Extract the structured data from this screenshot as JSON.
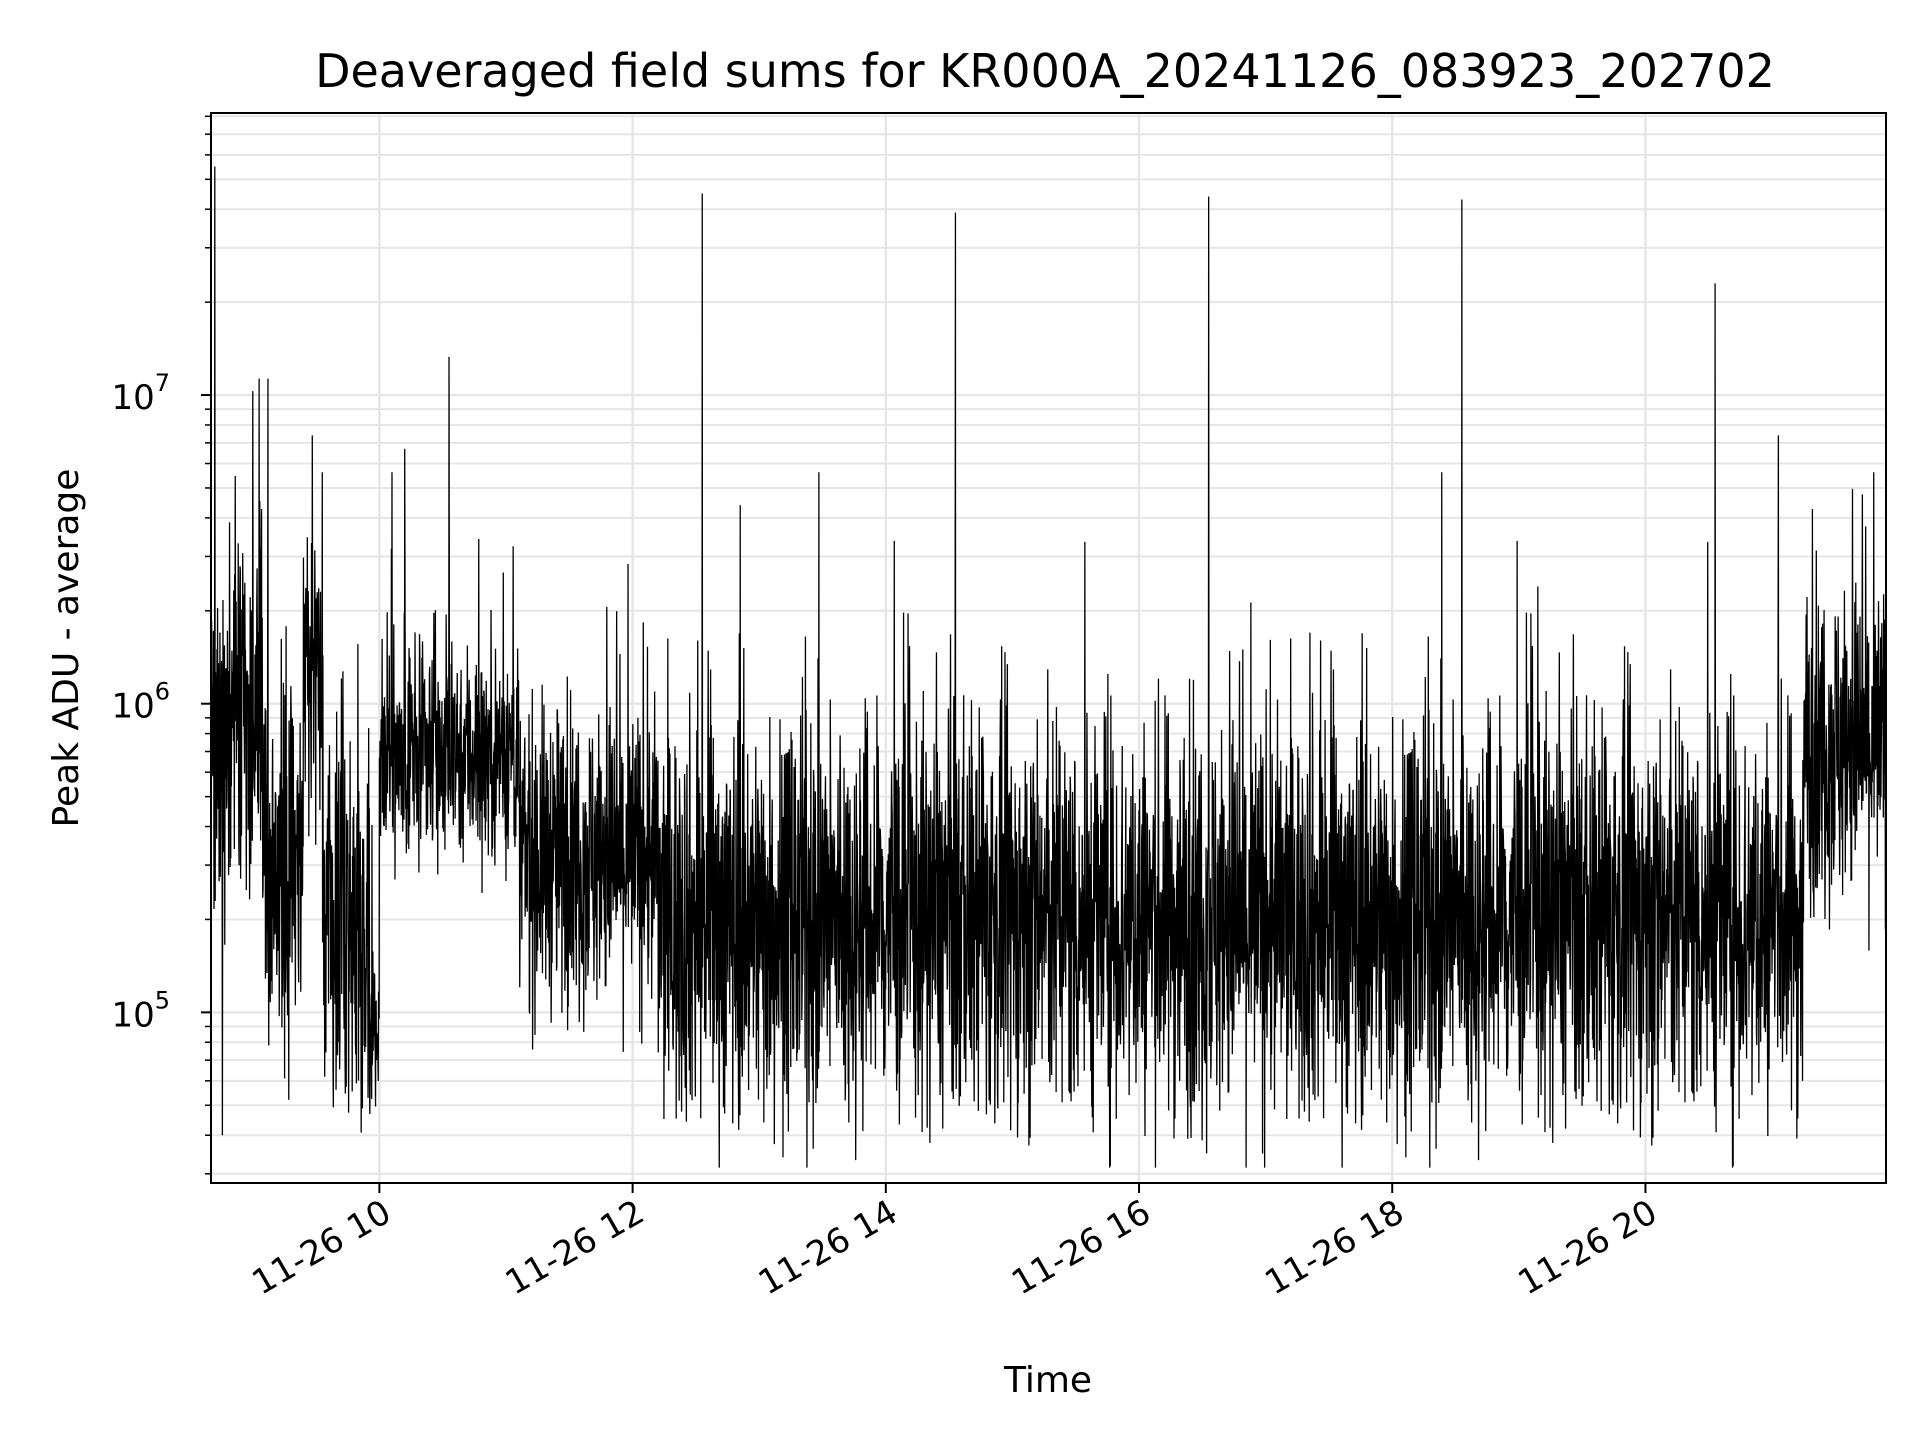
{
  "chart_data": {
    "type": "line",
    "title": "Deaveraged field sums for KR000A_20241126_083923_202702",
    "xlabel": "Time",
    "ylabel": "Peak ADU - average",
    "yscale": "log",
    "xlim_hours": [
      8.67,
      21.9
    ],
    "ylim": [
      28000,
      82000000
    ],
    "grid": true,
    "line_color": "#000000",
    "x_ticks": [
      {
        "hour": 10,
        "label": "11-26 10"
      },
      {
        "hour": 12,
        "label": "11-26 12"
      },
      {
        "hour": 14,
        "label": "11-26 14"
      },
      {
        "hour": 16,
        "label": "11-26 16"
      },
      {
        "hour": 18,
        "label": "11-26 18"
      },
      {
        "hour": 20,
        "label": "11-26 20"
      }
    ],
    "y_ticks": [
      {
        "value": 100000,
        "base": "10",
        "exp": "5"
      },
      {
        "value": 1000000,
        "base": "10",
        "exp": "6"
      },
      {
        "value": 10000000,
        "base": "10",
        "exp": "7"
      }
    ],
    "segments": [
      {
        "t0": 8.67,
        "t1": 9.1,
        "median": 900000,
        "spread": 0.85
      },
      {
        "t0": 9.1,
        "t1": 9.4,
        "median": 320000,
        "spread": 0.95
      },
      {
        "t0": 9.4,
        "t1": 9.55,
        "median": 1500000,
        "spread": 0.75
      },
      {
        "t0": 9.55,
        "t1": 9.92,
        "median": 200000,
        "spread": 0.95
      },
      {
        "t0": 9.92,
        "t1": 10.0,
        "median": 90000,
        "spread": 0.35
      },
      {
        "t0": 10.0,
        "t1": 11.1,
        "median": 700000,
        "spread": 0.55
      },
      {
        "t0": 11.1,
        "t1": 12.2,
        "median": 320000,
        "spread": 0.75
      },
      {
        "t0": 12.2,
        "t1": 21.25,
        "median": 200000,
        "spread": 1.0
      },
      {
        "t0": 21.25,
        "t1": 21.9,
        "median": 750000,
        "spread": 0.8
      }
    ],
    "spikes": [
      {
        "t": 8.7,
        "value": 55000000
      },
      {
        "t": 8.76,
        "value": 40000
      },
      {
        "t": 9.0,
        "value": 10300000
      },
      {
        "t": 9.05,
        "value": 11300000
      },
      {
        "t": 9.12,
        "value": 11300000
      },
      {
        "t": 9.47,
        "value": 7400000
      },
      {
        "t": 10.2,
        "value": 6700000
      },
      {
        "t": 10.55,
        "value": 13300000
      },
      {
        "t": 12.55,
        "value": 45000000
      },
      {
        "t": 12.85,
        "value": 4400000
      },
      {
        "t": 14.55,
        "value": 39000000
      },
      {
        "t": 16.55,
        "value": 44000000
      },
      {
        "t": 17.35,
        "value": 1700000
      },
      {
        "t": 18.1,
        "value": 46000
      },
      {
        "t": 18.55,
        "value": 43000000
      },
      {
        "t": 19.15,
        "value": 2400000
      },
      {
        "t": 20.1,
        "value": 48000
      },
      {
        "t": 20.55,
        "value": 23000000
      },
      {
        "t": 21.05,
        "value": 7400000
      }
    ]
  }
}
